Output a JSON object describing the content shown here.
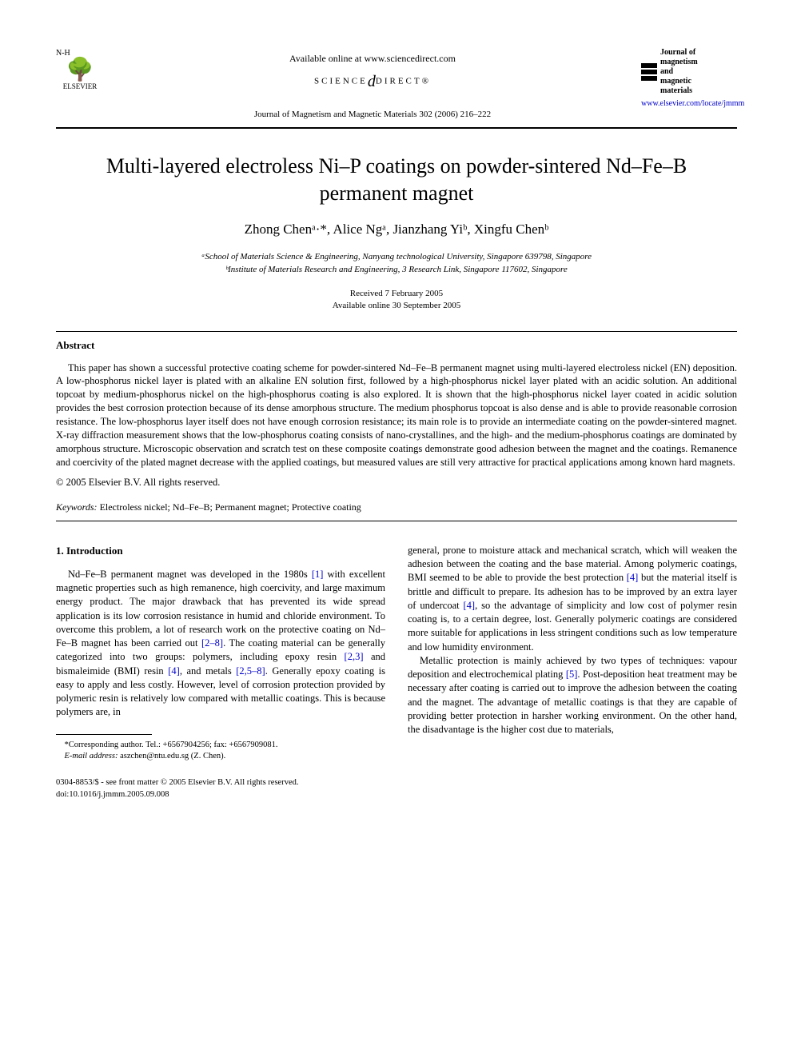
{
  "header": {
    "availableOnline": "Available online at www.sciencedirect.com",
    "scienceDirectPrefix": "SCIENCE",
    "scienceDirectSuffix": "DIRECT®",
    "journalRef": "Journal of Magnetism and Magnetic Materials 302 (2006) 216–222",
    "elsevierLabel": "ELSEVIER",
    "journalLogoText1": "Journal of",
    "journalLogoText2": "magnetism",
    "journalLogoText3": "and",
    "journalLogoText4": "magnetic",
    "journalLogoText5": "materials",
    "journalLink": "www.elsevier.com/locate/jmmm"
  },
  "title": "Multi-layered electroless Ni–P coatings on powder-sintered Nd–Fe–B permanent magnet",
  "authors": "Zhong Chenᵃ·*, Alice Ngᵃ, Jianzhang Yiᵇ, Xingfu Chenᵇ",
  "affiliations": {
    "a": "ᵃSchool of Materials Science & Engineering, Nanyang technological University, Singapore 639798, Singapore",
    "b": "ᵇInstitute of Materials Research and Engineering, 3 Research Link, Singapore 117602, Singapore"
  },
  "dates": {
    "received": "Received 7 February 2005",
    "online": "Available online 30 September 2005"
  },
  "abstract": {
    "heading": "Abstract",
    "text": "This paper has shown a successful protective coating scheme for powder-sintered Nd–Fe–B permanent magnet using multi-layered electroless nickel (EN) deposition. A low-phosphorus nickel layer is plated with an alkaline EN solution first, followed by a high-phosphorus nickel layer plated with an acidic solution. An additional topcoat by medium-phosphorus nickel on the high-phosphorus coating is also explored. It is shown that the high-phosphorus nickel layer coated in acidic solution provides the best corrosion protection because of its dense amorphous structure. The medium phosphorus topcoat is also dense and is able to provide reasonable corrosion resistance. The low-phosphorus layer itself does not have enough corrosion resistance; its main role is to provide an intermediate coating on the powder-sintered magnet. X-ray diffraction measurement shows that the low-phosphorus coating consists of nano-crystallines, and the high- and the medium-phosphorus coatings are dominated by amorphous structure. Microscopic observation and scratch test on these composite coatings demonstrate good adhesion between the magnet and the coatings. Remanence and coercivity of the plated magnet decrease with the applied coatings, but measured values are still very attractive for practical applications among known hard magnets.",
    "copyright": "© 2005 Elsevier B.V. All rights reserved."
  },
  "keywords": {
    "label": "Keywords:",
    "text": " Electroless nickel; Nd–Fe–B; Permanent magnet; Protective coating"
  },
  "section1": {
    "heading": "1. Introduction",
    "para1a": "Nd–Fe–B permanent magnet was developed in the 1980s ",
    "para1b": " with excellent magnetic properties such as high remanence, high coercivity, and large maximum energy product. The major drawback that has prevented its wide spread application is its low corrosion resistance in humid and chloride environment. To overcome this problem, a lot of research work on the protective coating on Nd–Fe–B magnet has been carried out ",
    "para1c": ". The coating material can be generally categorized into two groups: polymers, including epoxy resin ",
    "para1d": " and bismaleimide (BMI) resin ",
    "para1e": ", and metals ",
    "para1f": ". Generally epoxy coating is easy to apply and less costly. However, level of corrosion protection provided by polymeric resin is relatively low compared with metallic coatings. This is because polymers are, in",
    "para2a": "general, prone to moisture attack and mechanical scratch, which will weaken the adhesion between the coating and the base material. Among polymeric coatings, BMI seemed to be able to provide the best protection ",
    "para2b": " but the material itself is brittle and difficult to prepare. Its adhesion has to be improved by an extra layer of undercoat ",
    "para2c": ", so the advantage of simplicity and low cost of polymer resin coating is, to a certain degree, lost. Generally polymeric coatings are considered more suitable for applications in less stringent conditions such as low temperature and low humidity environment.",
    "para3a": "Metallic protection is mainly achieved by two types of techniques: vapour deposition and electrochemical plating ",
    "para3b": ". Post-deposition heat treatment may be necessary after coating is carried out to improve the adhesion between the coating and the magnet. The advantage of metallic coatings is that they are capable of providing better protection in harsher working environment. On the other hand, the disadvantage is the higher cost due to materials,"
  },
  "refs": {
    "r1": "[1]",
    "r2_8": "[2–8]",
    "r2_3": "[2,3]",
    "r4": "[4]",
    "r2_5_8": "[2,5–8]",
    "r5": "[5]"
  },
  "footnote": {
    "corresponding": "*Corresponding author. Tel.: +6567904256; fax: +6567909081.",
    "emailLabel": "E-mail address:",
    "email": " aszchen@ntu.edu.sg (Z. Chen)."
  },
  "footer": {
    "line1": "0304-8853/$ - see front matter © 2005 Elsevier B.V. All rights reserved.",
    "line2": "doi:10.1016/j.jmmm.2005.09.008"
  },
  "colors": {
    "link": "#0000cc",
    "text": "#000000",
    "background": "#ffffff"
  }
}
